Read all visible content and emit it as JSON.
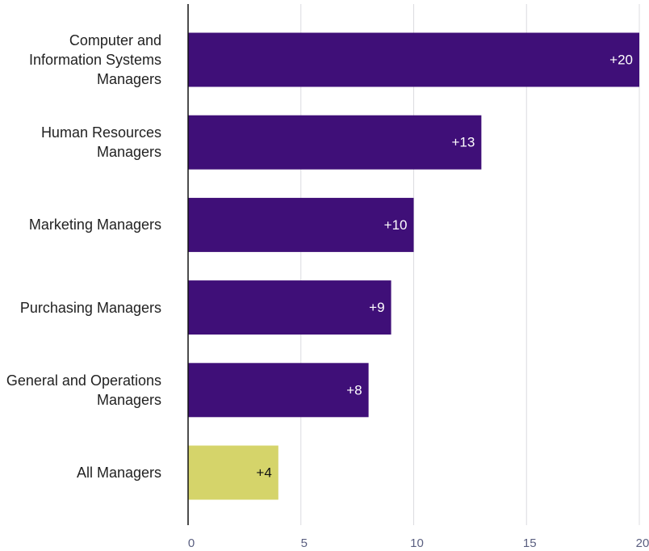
{
  "chart_data": {
    "type": "bar",
    "orientation": "horizontal",
    "categories": [
      "Computer and Information Systems Managers",
      "Human Resources Managers",
      "Marketing Managers",
      "Purchasing Managers",
      "General and Operations Managers",
      "All Managers"
    ],
    "values": [
      20,
      13,
      10,
      9,
      8,
      4
    ],
    "value_labels": [
      "+20",
      "+13",
      "+10",
      "+9",
      "+8",
      "+4"
    ],
    "colors": [
      "#3f0f78",
      "#3f0f78",
      "#3f0f78",
      "#3f0f78",
      "#3f0f78",
      "#d5d46a"
    ],
    "xlim": [
      0,
      20
    ],
    "xticks": [
      0,
      5,
      10,
      15,
      20
    ],
    "grid": true
  }
}
